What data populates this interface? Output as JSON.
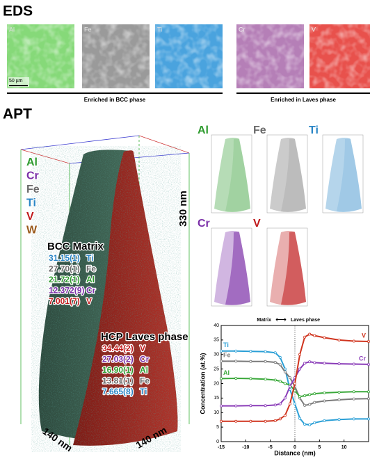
{
  "eds": {
    "title": "EDS",
    "scale_bar": "50 µm",
    "maps": [
      {
        "label": "Al",
        "color": "#86d979"
      },
      {
        "label": "Fe",
        "color": "#9a9a9a"
      },
      {
        "label": "Ti",
        "color": "#4aa3de"
      },
      {
        "label": "Cr",
        "color": "#b57fb7"
      },
      {
        "label": "V",
        "color": "#e8514c"
      }
    ],
    "groups": [
      "Enriched in BCC phase",
      "Enriched in Laves phase"
    ]
  },
  "apt": {
    "title": "APT",
    "elements": [
      {
        "label": "Al",
        "color": "#2e9b2e"
      },
      {
        "label": "Cr",
        "color": "#7b2fa8"
      },
      {
        "label": "Fe",
        "color": "#6a6a6a"
      },
      {
        "label": "Ti",
        "color": "#2a86c6"
      },
      {
        "label": "V",
        "color": "#c0191b"
      },
      {
        "label": "W",
        "color": "#9a5a1c"
      }
    ],
    "bcc": {
      "title": "BCC Matrix",
      "rows": [
        {
          "value": "31.15(1)",
          "element": "Ti"
        },
        {
          "value": "27.70(1)",
          "element": "Fe"
        },
        {
          "value": "21.72(1)",
          "element": "Al"
        },
        {
          "value": "12.372(9)",
          "element": "Cr"
        },
        {
          "value": "7.001(7)",
          "element": "V"
        }
      ]
    },
    "hcp": {
      "title": "HCP Laves phase",
      "rows": [
        {
          "value": "34.44(2)",
          "element": "V"
        },
        {
          "value": "27.03(2)",
          "element": "Cr"
        },
        {
          "value": "16.90(1)",
          "element": "Al"
        },
        {
          "value": "13.81(1)",
          "element": "Fe"
        },
        {
          "value": "7.665(8)",
          "element": "Ti"
        }
      ]
    },
    "height_label": "330 nm",
    "width_labels": [
      "140 nm",
      "140 nm"
    ],
    "maps": [
      "Al",
      "Fe",
      "Ti",
      "Cr",
      "V"
    ]
  },
  "chart_data": {
    "type": "line",
    "annotation_left": "Matrix",
    "annotation_arrow": "⟷",
    "annotation_right": "Laves phase",
    "xlabel": "Distance (nm)",
    "ylabel": "Concentration (at.%)",
    "x": [
      -15,
      -12,
      -9,
      -6,
      -4,
      -3,
      -2,
      -1,
      0,
      1,
      2,
      3,
      4,
      6,
      9,
      12,
      15
    ],
    "series": [
      {
        "name": "Ti",
        "color": "#2a9fd6",
        "values": [
          31.2,
          31.2,
          31.1,
          31,
          30.6,
          29,
          25,
          18,
          13,
          8,
          6,
          5.8,
          6.5,
          7.2,
          7.6,
          7.8,
          7.8
        ]
      },
      {
        "name": "Fe",
        "color": "#7a7a7a",
        "values": [
          27.7,
          27.7,
          27.6,
          27.6,
          27.3,
          26.5,
          24,
          22,
          19,
          15,
          12.5,
          12.8,
          13.5,
          14,
          14.4,
          14.7,
          14.8
        ]
      },
      {
        "name": "Al",
        "color": "#3aa83a",
        "values": [
          21.7,
          21.8,
          21.7,
          21.5,
          21.2,
          20.8,
          20,
          19.5,
          17.5,
          15.5,
          15.8,
          16.2,
          16.5,
          16.8,
          17,
          17.2,
          17.2
        ]
      },
      {
        "name": "Cr",
        "color": "#8a3cb8",
        "values": [
          12.3,
          12.3,
          12.4,
          12.4,
          12.6,
          13,
          15,
          19,
          22,
          25,
          27,
          27.5,
          27.2,
          27,
          26.8,
          26.7,
          26.6
        ]
      },
      {
        "name": "V",
        "color": "#d0341e",
        "values": [
          7,
          7,
          7,
          7,
          7.2,
          7.8,
          9,
          13,
          20,
          30,
          36,
          37,
          36.5,
          35.8,
          35,
          34.6,
          34.5
        ]
      }
    ],
    "xlim": [
      -15,
      15
    ],
    "ylim": [
      0,
      40
    ],
    "xticks": [
      -15,
      -10,
      -5,
      0,
      5,
      10
    ],
    "yticks": [
      0,
      5,
      10,
      15,
      20,
      25,
      30,
      35,
      40
    ]
  }
}
